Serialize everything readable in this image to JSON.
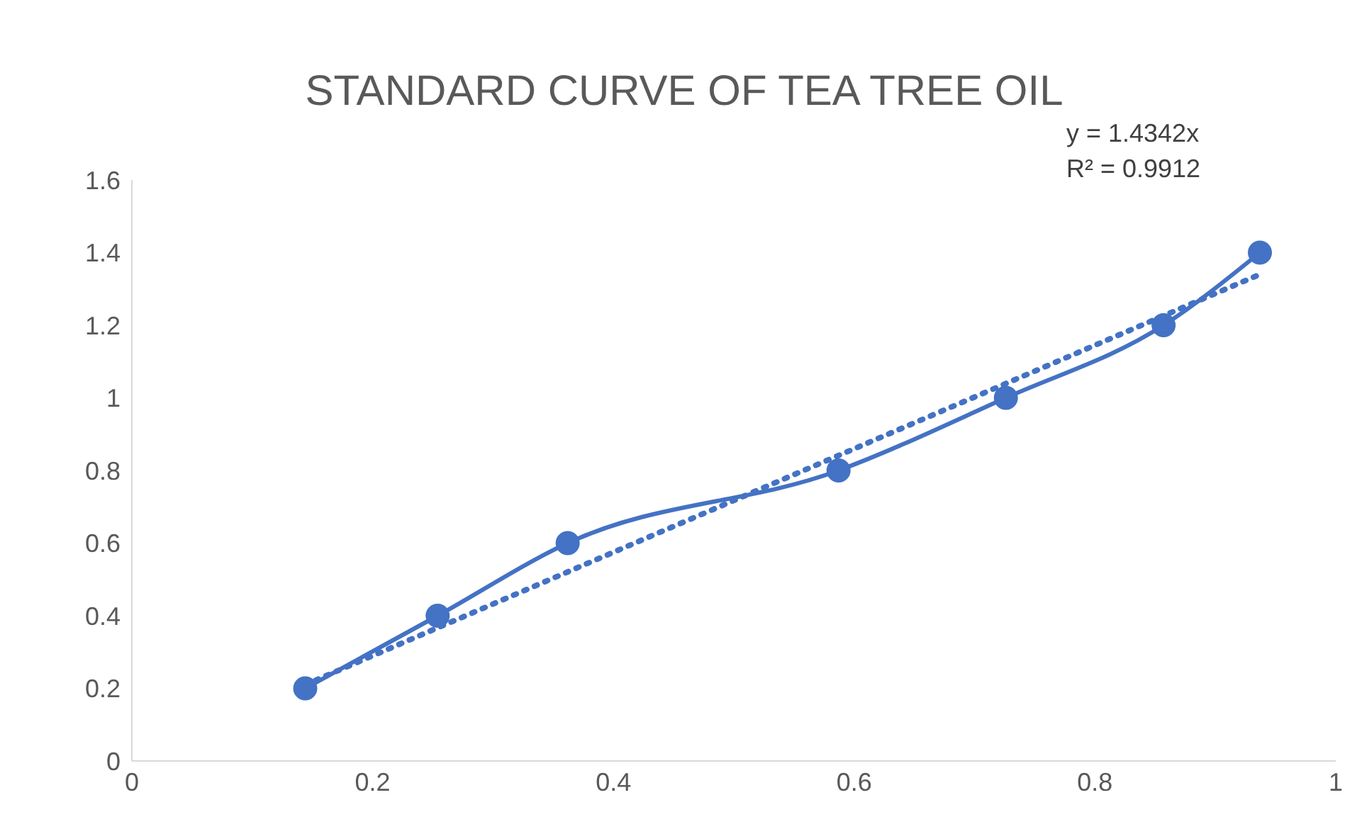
{
  "chart_data": {
    "type": "line",
    "title": "STANDARD CURVE OF TEA TREE OIL",
    "annotations": [
      "y = 1.4342x",
      "R² = 0.9912"
    ],
    "series": [
      {
        "type": "line",
        "color": "#4472c4",
        "x": [
          0.144,
          0.254,
          0.362,
          0.587,
          0.726,
          0.857,
          0.937
        ],
        "values": [
          0.2,
          0.4,
          0.6,
          0.8,
          1.0,
          1.2,
          1.4
        ],
        "marker": "circle",
        "line_style": "solid"
      },
      {
        "type": "line",
        "color": "#4472c4",
        "x": [
          0.144,
          0.937
        ],
        "values": [
          0.21,
          1.34
        ],
        "marker": "none",
        "line_style": "dotted"
      }
    ],
    "xlim": [
      0,
      1
    ],
    "xticks": [
      0,
      0.2,
      0.4,
      0.6,
      0.8,
      1
    ],
    "ylim": [
      0,
      1.6
    ],
    "yticks": [
      0,
      0.2,
      0.4,
      0.6,
      0.8,
      1,
      1.2,
      1.4,
      1.6
    ],
    "grid": false
  }
}
